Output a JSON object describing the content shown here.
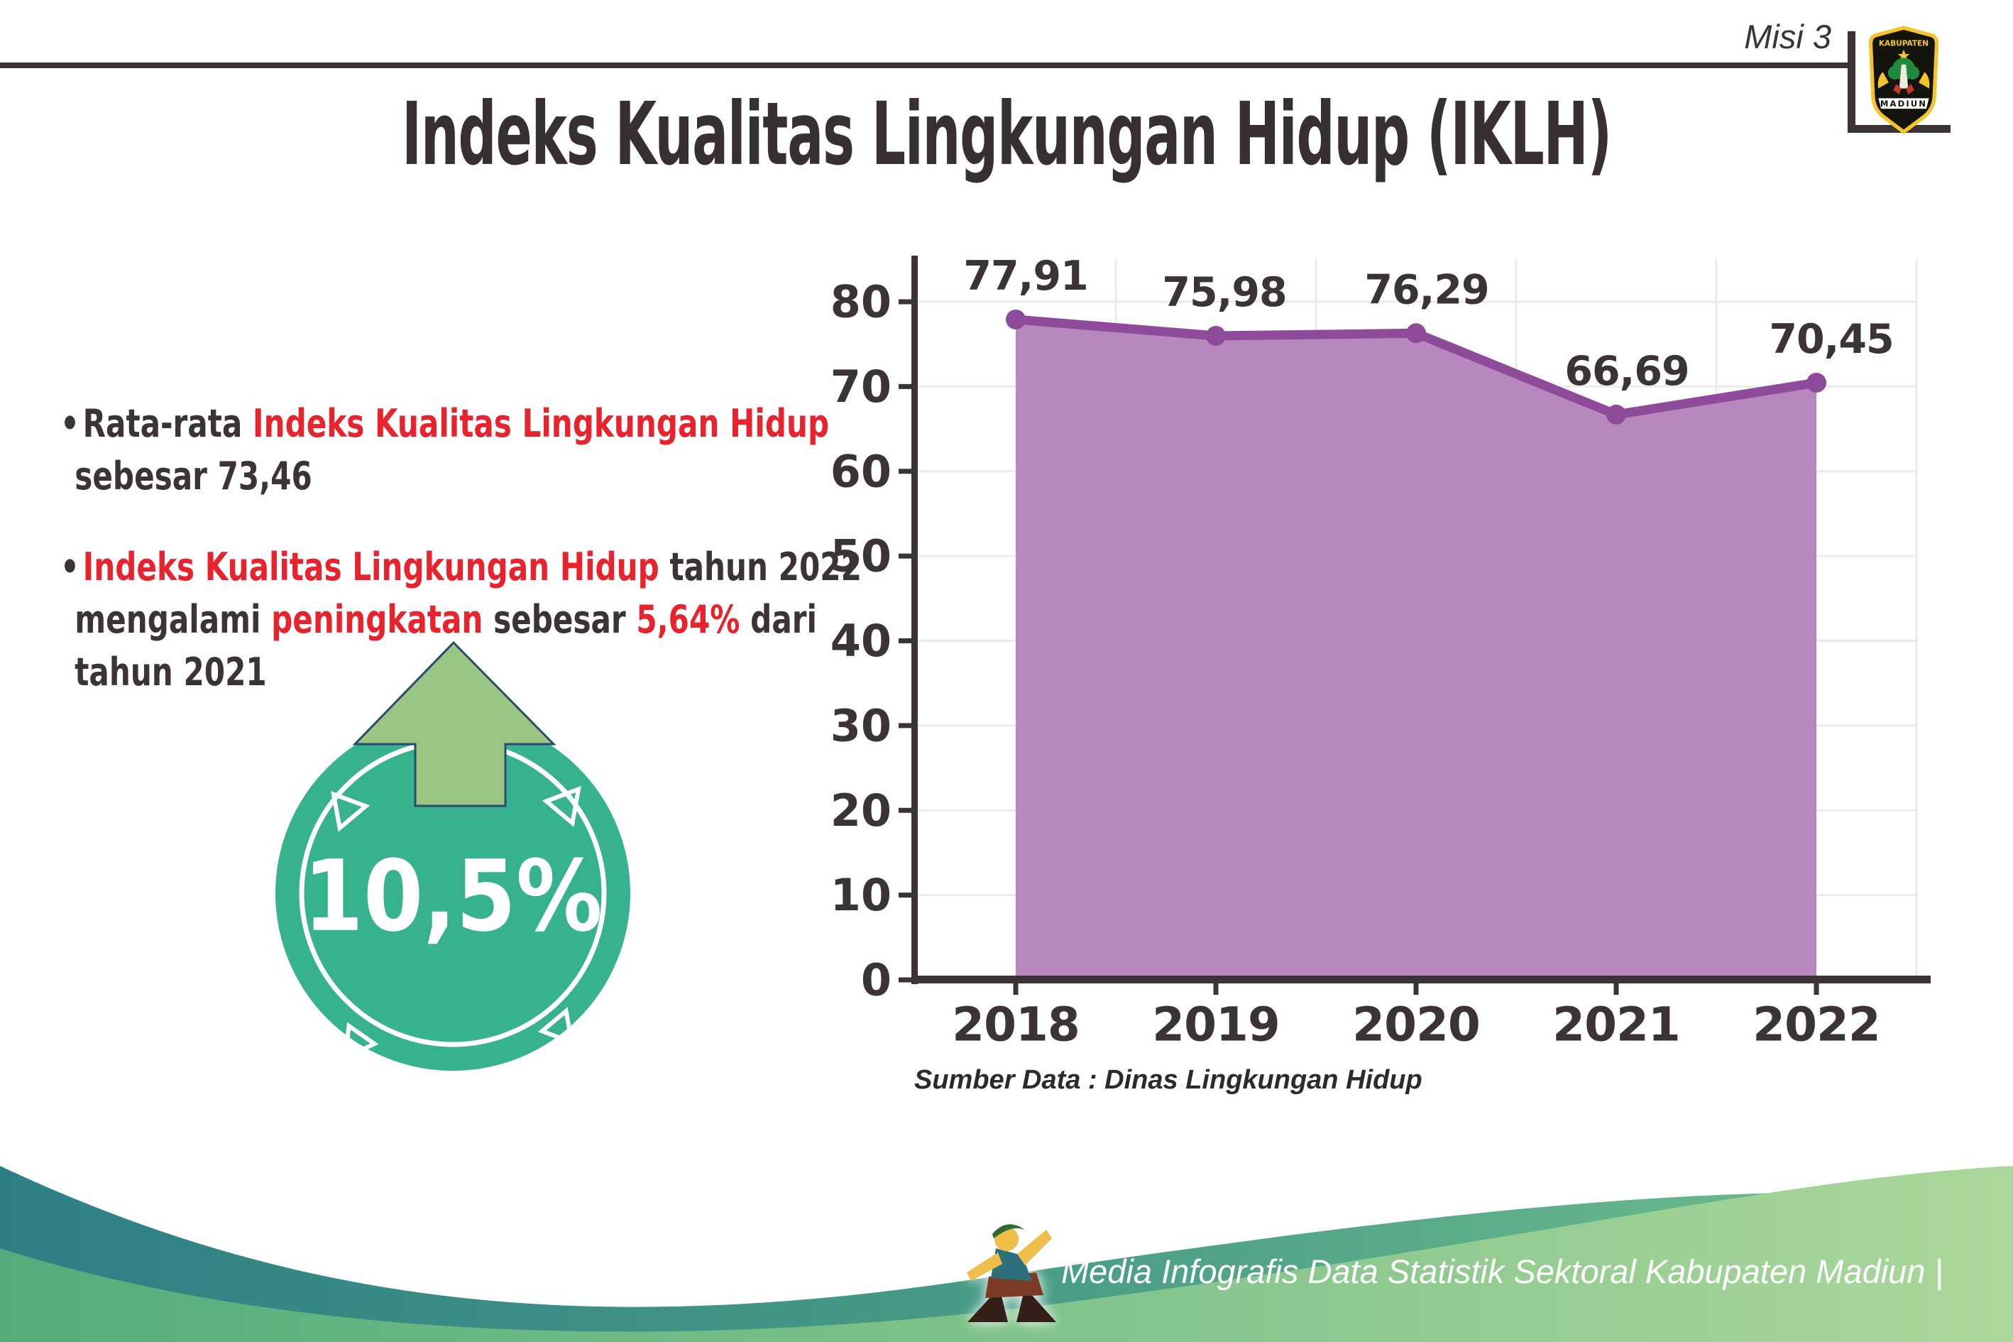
{
  "header": {
    "misi_label": "Misi 3"
  },
  "logo": {
    "top_text": "KABUPATEN",
    "bottom_text": "MADIUN"
  },
  "title": "Indeks Kualitas Lingkungan Hidup (IKLH)",
  "icons": {
    "bullet": "•",
    "up_arrow": "up-arrow",
    "mascot": "dancing-person-mascot",
    "logo": "kabupaten-madiun-emblem"
  },
  "bullets": [
    {
      "lines": [
        [
          {
            "t": "Rata-rata ",
            "c": "dark"
          },
          {
            "t": "Indeks Kualitas Lingkungan Hidup",
            "c": "red"
          }
        ],
        [
          {
            "t": "sebesar 73,46",
            "c": "dark"
          }
        ]
      ]
    },
    {
      "lines": [
        [
          {
            "t": "Indeks Kualitas Lingkungan Hidup",
            "c": "red"
          },
          {
            "t": " tahun 2022",
            "c": "dark"
          }
        ],
        [
          {
            "t": "mengalami ",
            "c": "dark"
          },
          {
            "t": "peningkatan",
            "c": "red"
          },
          {
            "t": " sebesar ",
            "c": "dark"
          },
          {
            "t": "5,64%",
            "c": "red"
          },
          {
            "t": " dari",
            "c": "dark"
          }
        ],
        [
          {
            "t": "tahun 2021",
            "c": "dark"
          }
        ]
      ]
    }
  ],
  "badge": {
    "value": "10,5%"
  },
  "chart_data": {
    "type": "area",
    "categories": [
      "2018",
      "2019",
      "2020",
      "2021",
      "2022"
    ],
    "values": [
      77.91,
      75.98,
      76.29,
      66.69,
      70.45
    ],
    "value_labels": [
      "77,91",
      "75,98",
      "76,29",
      "66,69",
      "70,45"
    ],
    "title": "",
    "xlabel": "",
    "ylabel": "",
    "ylim": [
      0,
      80
    ],
    "ytick_step": 10,
    "yticks": [
      "0",
      "10",
      "20",
      "30",
      "40",
      "50",
      "60",
      "70",
      "80"
    ],
    "grid": true,
    "legend": false,
    "fill_color": "#b787bd",
    "line_color": "#8d4b99",
    "source": "Sumber Data : Dinas Lingkungan Hidup"
  },
  "footer": {
    "text": "Media Infografis Data Statistik Sektoral Kabupaten Madiun |"
  },
  "colors": {
    "dark_text": "#3b3335",
    "red_accent": "#e8232e",
    "badge_teal": "#36b28e",
    "arrow_green": "#9ac583",
    "arrow_outline": "#2b4a70",
    "chart_fill": "#b787bd",
    "chart_line": "#8d4b99",
    "grid": "#ebebeb",
    "wave_teal": "#2e7f85",
    "wave_green": "#6cbd88",
    "wave_light_green": "#abd79a"
  }
}
